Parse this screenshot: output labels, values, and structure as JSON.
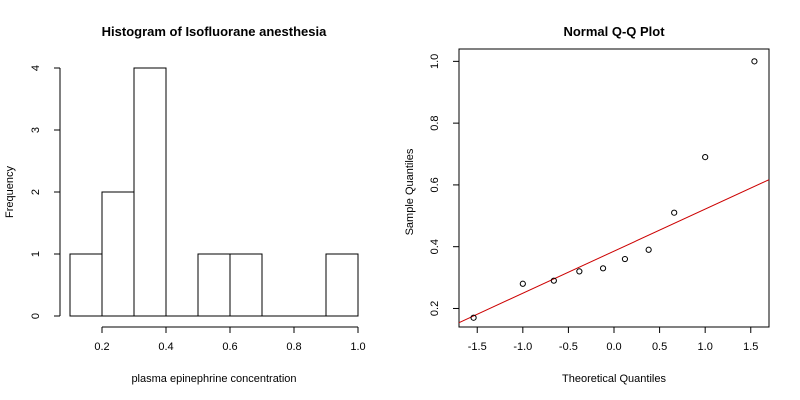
{
  "chart_data": [
    {
      "type": "bar",
      "title": "Histogram of Isofluorane anesthesia",
      "xlabel": "plasma epinephrine concentration",
      "ylabel": "Frequency",
      "bins": [
        {
          "from": 0.1,
          "to": 0.2,
          "count": 1
        },
        {
          "from": 0.2,
          "to": 0.3,
          "count": 2
        },
        {
          "from": 0.3,
          "to": 0.4,
          "count": 4
        },
        {
          "from": 0.4,
          "to": 0.5,
          "count": 0
        },
        {
          "from": 0.5,
          "to": 0.6,
          "count": 1
        },
        {
          "from": 0.6,
          "to": 0.7,
          "count": 1
        },
        {
          "from": 0.7,
          "to": 0.8,
          "count": 0
        },
        {
          "from": 0.8,
          "to": 0.9,
          "count": 0
        },
        {
          "from": 0.9,
          "to": 1.0,
          "count": 1
        }
      ],
      "xticks": [
        0.2,
        0.4,
        0.6,
        0.8,
        1.0
      ],
      "xtick_labels": [
        "0.2",
        "0.4",
        "0.6",
        "0.8",
        "1.0"
      ],
      "yticks": [
        0,
        1,
        2,
        3,
        4
      ],
      "yticklabels": [
        "0",
        "1",
        "2",
        "3",
        "4"
      ],
      "xlim": [
        0.1,
        1.0
      ],
      "ylim": [
        0,
        4
      ],
      "grid": false
    },
    {
      "type": "scatter",
      "title": "Normal Q-Q Plot",
      "xlabel": "Theoretical Quantiles",
      "ylabel": "Sample Quantiles",
      "points": [
        {
          "x": -1.54,
          "y": 0.17
        },
        {
          "x": -1.0,
          "y": 0.28
        },
        {
          "x": -0.66,
          "y": 0.29
        },
        {
          "x": -0.38,
          "y": 0.32
        },
        {
          "x": -0.12,
          "y": 0.33
        },
        {
          "x": 0.12,
          "y": 0.36
        },
        {
          "x": 0.38,
          "y": 0.39
        },
        {
          "x": 0.66,
          "y": 0.51
        },
        {
          "x": 1.0,
          "y": 0.69
        },
        {
          "x": 1.54,
          "y": 1.0
        }
      ],
      "reference_line": {
        "color": "#cc0000",
        "x1": -1.7,
        "y1": 0.154,
        "x2": 1.7,
        "y2": 0.617
      },
      "xticks": [
        -1.5,
        -1.0,
        -0.5,
        0.0,
        0.5,
        1.0,
        1.5
      ],
      "xtick_labels": [
        "-1.5",
        "-1.0",
        "-0.5",
        "0.0",
        "0.5",
        "1.0",
        "1.5"
      ],
      "yticks": [
        0.2,
        0.4,
        0.6,
        0.8,
        1.0
      ],
      "ytick_labels": [
        "0.2",
        "0.4",
        "0.6",
        "0.8",
        "1.0"
      ],
      "xlim": [
        -1.7,
        1.7
      ],
      "ylim": [
        0.14,
        1.04
      ],
      "grid": false
    }
  ]
}
